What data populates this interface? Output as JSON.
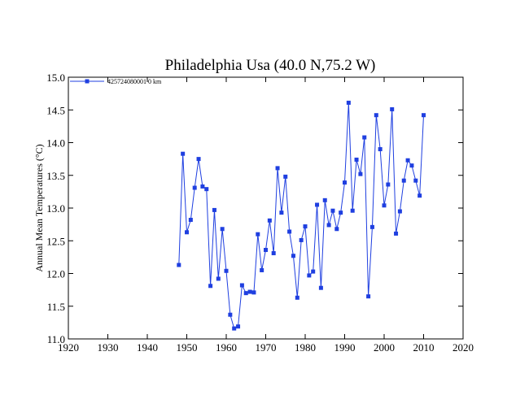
{
  "chart_data": {
    "type": "line",
    "title": "Philadelphia Usa (40.0 N,75.2 W)",
    "xlabel": "",
    "ylabel": "Annual Mean Temperatures (°C)",
    "xlim": [
      1920,
      2020
    ],
    "ylim": [
      11.0,
      15.0
    ],
    "xticks": [
      1920,
      1930,
      1940,
      1950,
      1960,
      1970,
      1980,
      1990,
      2000,
      2010,
      2020
    ],
    "yticks": [
      "11.0",
      "11.5",
      "12.0",
      "12.5",
      "13.0",
      "13.5",
      "14.0",
      "14.5",
      "15.0"
    ],
    "grid": false,
    "legend_position": "top-left",
    "color": "#1f3fe0",
    "series": [
      {
        "name": "425724080001  0 km",
        "x": [
          1948,
          1949,
          1950,
          1951,
          1952,
          1953,
          1954,
          1955,
          1956,
          1957,
          1958,
          1959,
          1960,
          1961,
          1962,
          1963,
          1964,
          1965,
          1966,
          1967,
          1968,
          1969,
          1970,
          1971,
          1972,
          1973,
          1974,
          1975,
          1976,
          1977,
          1978,
          1979,
          1980,
          1981,
          1982,
          1983,
          1984,
          1985,
          1986,
          1987,
          1988,
          1989,
          1990,
          1991,
          1992,
          1993,
          1994,
          1995,
          1996,
          1997,
          1998,
          1999,
          2000,
          2001,
          2002,
          2003,
          2004,
          2005,
          2006,
          2007,
          2008,
          2009,
          2010
        ],
        "y": [
          12.13,
          13.83,
          12.63,
          12.82,
          13.31,
          13.75,
          13.33,
          13.29,
          11.81,
          12.97,
          11.92,
          12.68,
          12.04,
          11.37,
          11.16,
          11.19,
          11.82,
          11.7,
          11.72,
          11.71,
          12.6,
          12.05,
          12.36,
          12.81,
          12.31,
          13.61,
          12.93,
          13.48,
          12.64,
          12.27,
          11.63,
          12.51,
          12.72,
          11.97,
          12.03,
          13.05,
          11.78,
          13.12,
          12.74,
          12.96,
          12.68,
          12.93,
          13.39,
          14.61,
          12.96,
          13.74,
          13.52,
          14.08,
          11.65,
          12.71,
          14.42,
          13.9,
          13.04,
          13.36,
          14.51,
          12.61,
          12.95,
          13.42,
          13.73,
          13.65,
          13.42,
          13.19,
          14.42
        ]
      }
    ]
  }
}
